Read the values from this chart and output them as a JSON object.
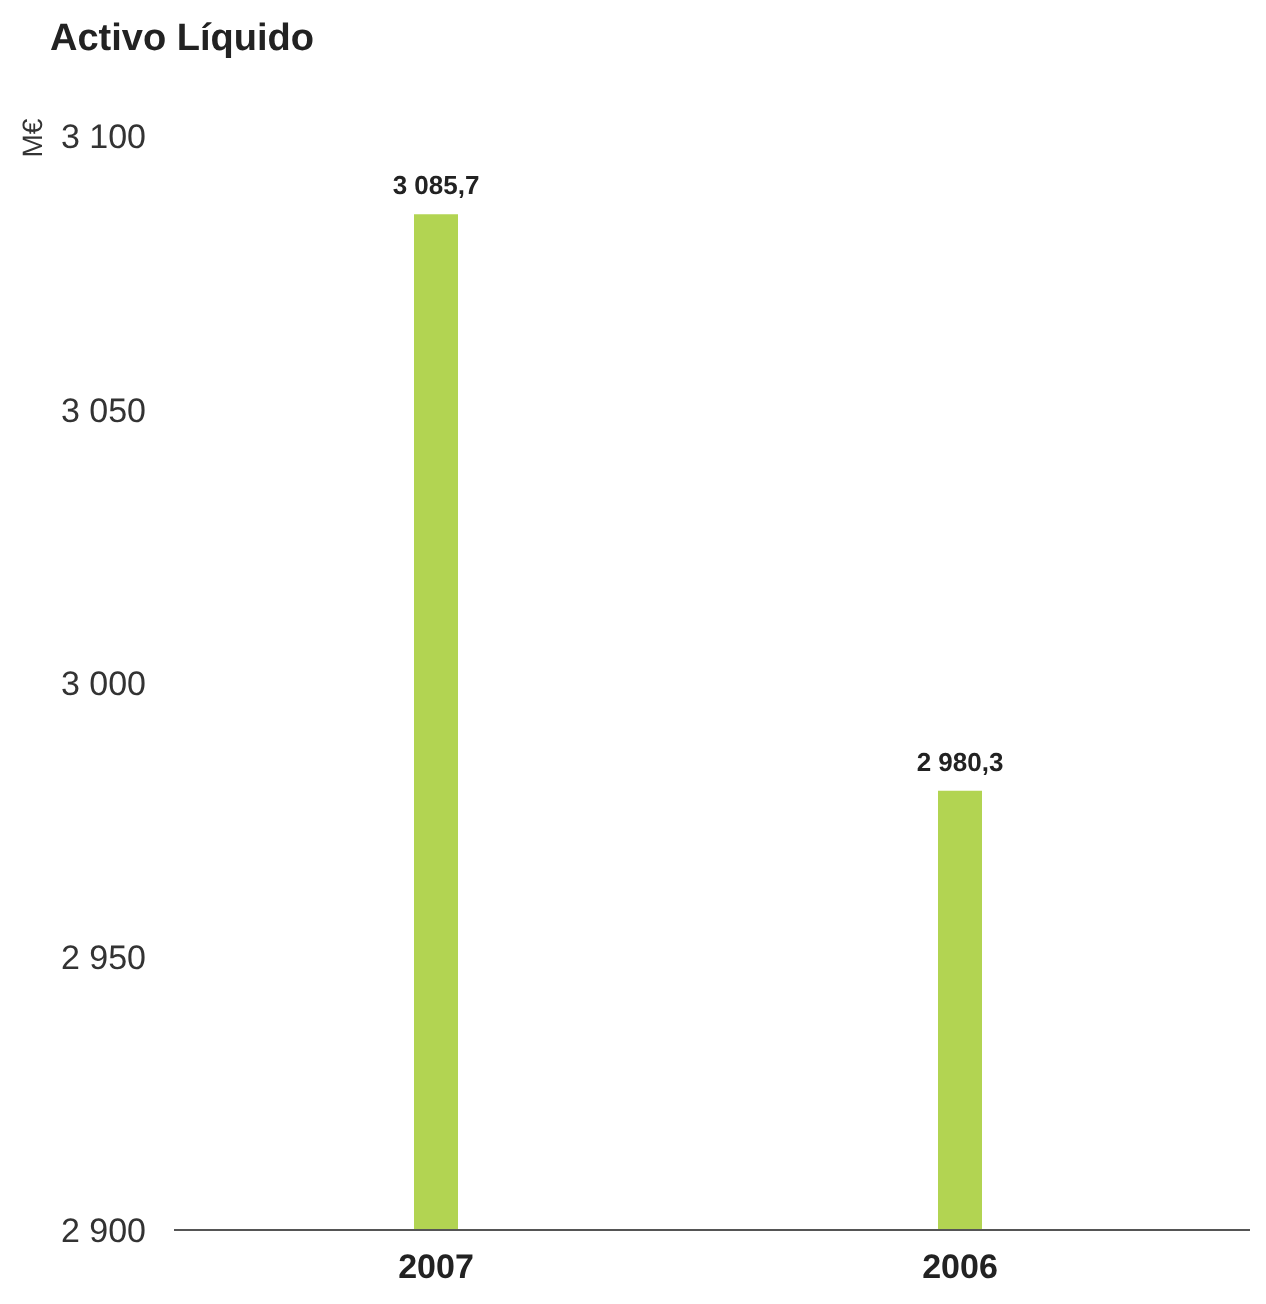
{
  "chart_data": {
    "type": "bar",
    "title": "Activo Líquido",
    "ylabel": "M€",
    "categories": [
      "2007",
      "2006"
    ],
    "values": [
      3085.7,
      2980.3
    ],
    "color": "#b2d452",
    "value_labels": [
      "3 085,7",
      "2 980,3"
    ],
    "ylim": [
      2900,
      3100
    ],
    "yticks": [
      {
        "value": 2900,
        "label": "2 900"
      },
      {
        "value": 2950,
        "label": "2 950"
      },
      {
        "value": 3000,
        "label": "3 000"
      },
      {
        "value": 3050,
        "label": "3 050"
      },
      {
        "value": 3100,
        "label": "3 100"
      }
    ]
  }
}
